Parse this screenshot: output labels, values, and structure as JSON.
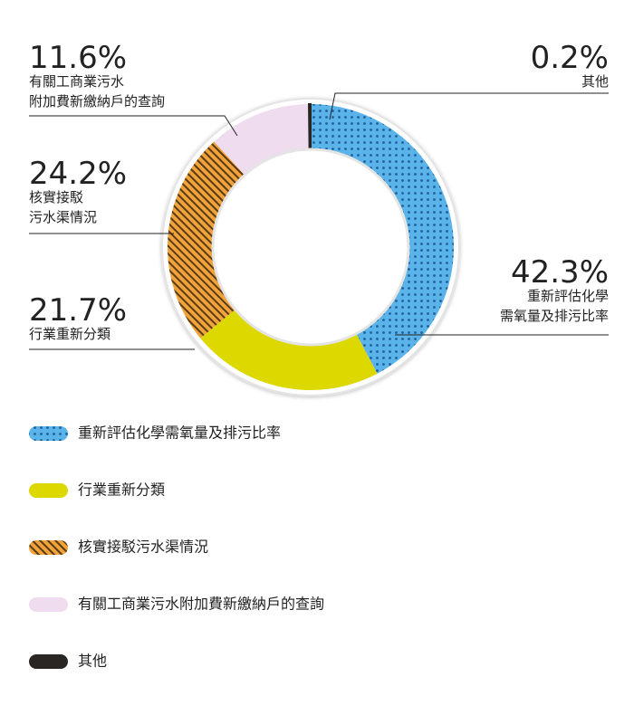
{
  "chart_data": {
    "type": "donut",
    "categories": [
      "重新評估化學需氧量及排污比率",
      "行業重新分類",
      "核實接駁污水渠情況",
      "有關工商業污水附加費新繳納戶的查詢",
      "其他"
    ],
    "values": [
      42.3,
      21.7,
      24.2,
      11.6,
      0.2
    ],
    "value_labels": [
      "42.3%",
      "21.7%",
      "24.2%",
      "11.6%",
      "0.2%"
    ],
    "callout_lines": [
      [
        "重新評估化學",
        "需氧量及排污比率"
      ],
      [
        "行業重新分類"
      ],
      [
        "核實接駁",
        "污水渠情況"
      ],
      [
        "有關工商業污水",
        "附加費新繳納戶的查詢"
      ],
      [
        "其他"
      ]
    ],
    "colors": [
      "#5ab4ea",
      "#dcd800",
      "#f0a33a",
      "#f0dcef",
      "#2a2623"
    ]
  }
}
